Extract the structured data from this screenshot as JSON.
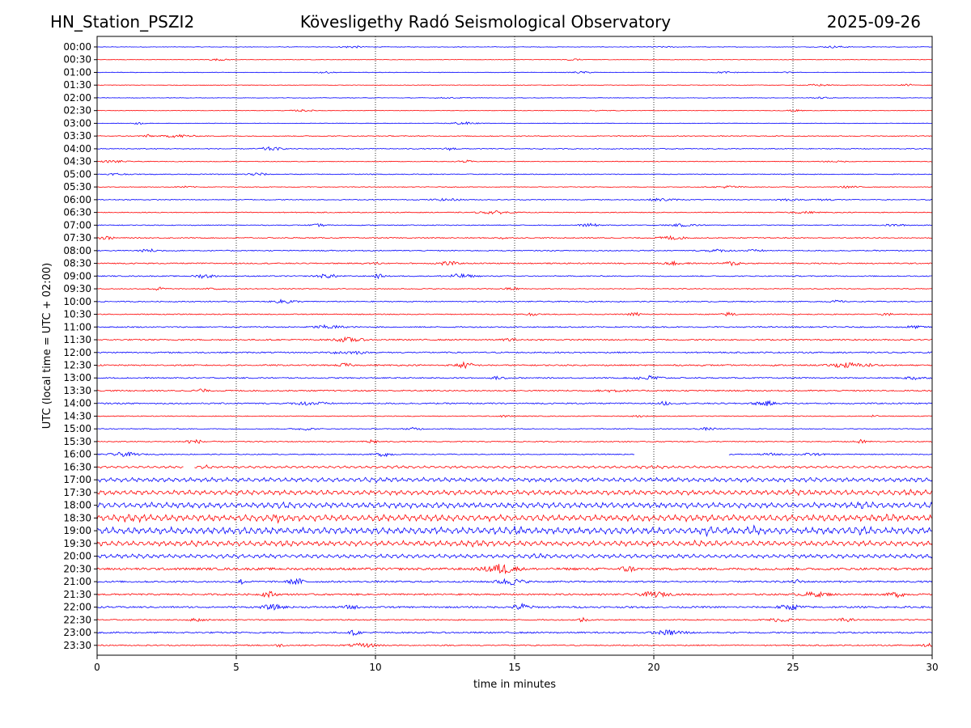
{
  "header": {
    "station": "HN_Station_PSZI2",
    "observatory": "Kövesligethy Radó Seismological Observatory",
    "date": "2025-09-26"
  },
  "chart_data": {
    "type": "line",
    "title": "Kövesligethy Radó Seismological Observatory",
    "xlabel": "time in minutes",
    "ylabel": "UTC (local time = UTC + 02:00)",
    "xlim": [
      0,
      30
    ],
    "x_ticks": [
      0,
      5,
      10,
      15,
      20,
      25,
      30
    ],
    "grid": "vertical dotted",
    "trace_colors": [
      "#0000ff",
      "#ff0000"
    ],
    "rows": [
      {
        "label": "00:00",
        "amplitude": 0.3
      },
      {
        "label": "00:30",
        "amplitude": 0.3
      },
      {
        "label": "01:00",
        "amplitude": 0.3
      },
      {
        "label": "01:30",
        "amplitude": 0.3
      },
      {
        "label": "02:00",
        "amplitude": 0.3
      },
      {
        "label": "02:30",
        "amplitude": 0.3
      },
      {
        "label": "03:00",
        "amplitude": 0.3
      },
      {
        "label": "03:30",
        "amplitude": 0.5
      },
      {
        "label": "04:00",
        "amplitude": 0.5
      },
      {
        "label": "04:30",
        "amplitude": 0.4
      },
      {
        "label": "05:00",
        "amplitude": 0.5
      },
      {
        "label": "05:30",
        "amplitude": 0.4
      },
      {
        "label": "06:00",
        "amplitude": 0.5
      },
      {
        "label": "06:30",
        "amplitude": 0.5
      },
      {
        "label": "07:00",
        "amplitude": 0.5
      },
      {
        "label": "07:30",
        "amplitude": 0.6
      },
      {
        "label": "08:00",
        "amplitude": 0.6
      },
      {
        "label": "08:30",
        "amplitude": 0.7
      },
      {
        "label": "09:00",
        "amplitude": 0.6
      },
      {
        "label": "09:30",
        "amplitude": 0.5
      },
      {
        "label": "10:00",
        "amplitude": 0.6
      },
      {
        "label": "10:30",
        "amplitude": 0.6
      },
      {
        "label": "11:00",
        "amplitude": 0.7
      },
      {
        "label": "11:30",
        "amplitude": 0.8
      },
      {
        "label": "12:00",
        "amplitude": 0.8
      },
      {
        "label": "12:30",
        "amplitude": 0.8
      },
      {
        "label": "13:00",
        "amplitude": 0.7
      },
      {
        "label": "13:30",
        "amplitude": 0.8
      },
      {
        "label": "14:00",
        "amplitude": 0.8
      },
      {
        "label": "14:30",
        "amplitude": 0.5
      },
      {
        "label": "15:00",
        "amplitude": 0.5
      },
      {
        "label": "15:30",
        "amplitude": 0.6
      },
      {
        "label": "16:00",
        "amplitude": 0.6,
        "gap": [
          19.3,
          22.7
        ]
      },
      {
        "label": "16:30",
        "amplitude": 1.8,
        "gap": [
          3.1,
          3.5
        ]
      },
      {
        "label": "17:00",
        "amplitude": 3.2
      },
      {
        "label": "17:30",
        "amplitude": 3.6
      },
      {
        "label": "18:00",
        "amplitude": 4.2
      },
      {
        "label": "18:30",
        "amplitude": 4.8
      },
      {
        "label": "19:00",
        "amplitude": 5.0
      },
      {
        "label": "19:30",
        "amplitude": 3.8
      },
      {
        "label": "20:00",
        "amplitude": 3.0
      },
      {
        "label": "20:30",
        "amplitude": 1.4
      },
      {
        "label": "21:00",
        "amplitude": 1.0
      },
      {
        "label": "21:30",
        "amplitude": 1.0
      },
      {
        "label": "22:00",
        "amplitude": 1.0
      },
      {
        "label": "22:30",
        "amplitude": 0.7
      },
      {
        "label": "23:00",
        "amplitude": 0.9
      },
      {
        "label": "23:30",
        "amplitude": 0.7
      }
    ]
  }
}
